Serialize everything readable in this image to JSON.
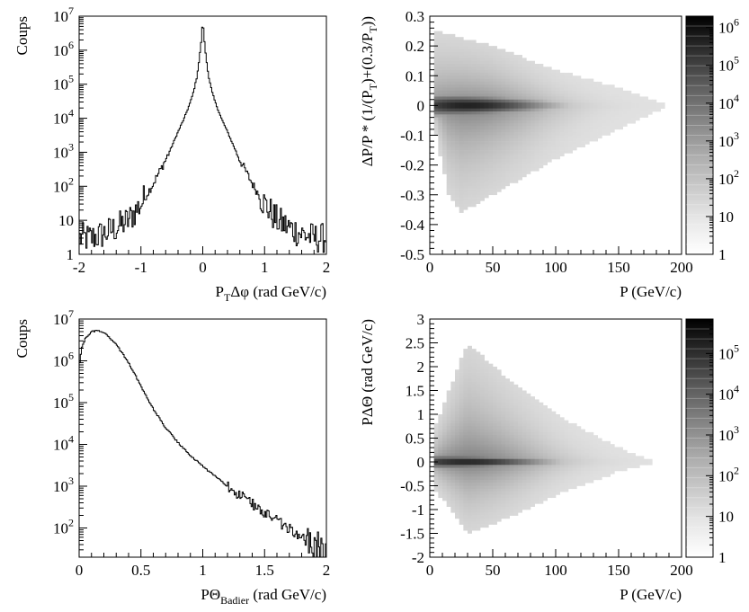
{
  "chart_data": [
    {
      "id": "panel-top-left",
      "type": "line",
      "style": "histogram-step",
      "xlabel": {
        "main": "P",
        "sub": "T",
        "rest": "Δφ (rad GeV/c)"
      },
      "ylabel": "Coups",
      "xlim": [
        -2,
        2
      ],
      "ylim": [
        1,
        10000000
      ],
      "yscale": "log",
      "xticks": [
        "-2",
        "-1",
        "0",
        "1",
        "2"
      ],
      "yticks": [
        {
          "value": 1,
          "base": "1",
          "exp": ""
        },
        {
          "value": 10,
          "base": "10",
          "exp": ""
        },
        {
          "value": 100,
          "base": "10",
          "exp": "2"
        },
        {
          "value": 1000,
          "base": "10",
          "exp": "3"
        },
        {
          "value": 10000,
          "base": "10",
          "exp": "4"
        },
        {
          "value": 100000,
          "base": "10",
          "exp": "5"
        },
        {
          "value": 1000000,
          "base": "10",
          "exp": "6"
        },
        {
          "value": 10000000,
          "base": "10",
          "exp": "7"
        }
      ],
      "series": [
        {
          "x": [
            -2.0,
            -1.8,
            -1.6,
            -1.4,
            -1.2,
            -1.0,
            -0.8,
            -0.6,
            -0.5,
            -0.4,
            -0.3,
            -0.2,
            -0.15,
            -0.1,
            -0.07,
            -0.05,
            -0.03,
            -0.02,
            -0.01,
            0.0,
            0.01,
            0.02,
            0.03,
            0.05,
            0.07,
            0.1,
            0.15,
            0.2,
            0.3,
            0.4,
            0.5,
            0.6,
            0.8,
            1.0,
            1.2,
            1.4,
            1.6,
            1.8,
            2.0
          ],
          "y": [
            3,
            3,
            4,
            6,
            10,
            30,
            120,
            600,
            1500,
            4000,
            10000,
            30000,
            60000,
            150000,
            350000,
            700000,
            1500000,
            2500000,
            4500000,
            6000000,
            4500000,
            2500000,
            1500000,
            700000,
            350000,
            150000,
            60000,
            30000,
            10000,
            4000,
            1500,
            600,
            120,
            30,
            10,
            6,
            4,
            3,
            3
          ]
        }
      ]
    },
    {
      "id": "panel-top-right",
      "type": "heatmap",
      "xlabel": "P (GeV/c)",
      "ylabel": "ΔP/P * (1/(P_T)+(0.3/P_T))",
      "ylabel_parts": {
        "a": "ΔP/P * (1/(P",
        "s1": "T",
        "b": ")+(0.3/P",
        "s2": "T",
        "c": "))"
      },
      "xlim": [
        0,
        200
      ],
      "ylim": [
        -0.5,
        0.3
      ],
      "xticks": [
        "0",
        "50",
        "100",
        "150",
        "200"
      ],
      "yticks": [
        "0.3",
        "0.2",
        "0.1",
        "0",
        "-0.1",
        "-0.2",
        "-0.3",
        "-0.4",
        "-0.5"
      ],
      "colorbar": {
        "scale": "log",
        "range": [
          1,
          2000000
        ],
        "ticks": [
          {
            "value": 1,
            "base": "1",
            "exp": ""
          },
          {
            "value": 10,
            "base": "10",
            "exp": ""
          },
          {
            "value": 100,
            "base": "10",
            "exp": "2"
          },
          {
            "value": 1000,
            "base": "10",
            "exp": "3"
          },
          {
            "value": 10000,
            "base": "10",
            "exp": "4"
          },
          {
            "value": 100000,
            "base": "10",
            "exp": "5"
          },
          {
            "value": 1000000,
            "base": "10",
            "exp": "6"
          }
        ]
      },
      "density": {
        "core": {
          "x_range": [
            5,
            185
          ],
          "center": 0.0,
          "half_width_start": 0.04,
          "peak_x": 40
        },
        "upper_envelope": [
          [
            5,
            0.25
          ],
          [
            50,
            0.2
          ],
          [
            100,
            0.12
          ],
          [
            150,
            0.06
          ],
          [
            185,
            0.01
          ]
        ],
        "lower_envelope": [
          [
            5,
            -0.1
          ],
          [
            15,
            -0.3
          ],
          [
            25,
            -0.36
          ],
          [
            50,
            -0.3
          ],
          [
            100,
            -0.18
          ],
          [
            150,
            -0.08
          ],
          [
            185,
            -0.01
          ]
        ]
      }
    },
    {
      "id": "panel-bottom-left",
      "type": "line",
      "style": "histogram-step",
      "xlabel": {
        "main": "PΘ",
        "sub": "Badier",
        "rest": " (rad GeV/c)"
      },
      "ylabel": "Coups",
      "xlim": [
        0,
        2
      ],
      "ylim": [
        20,
        10000000
      ],
      "yscale": "log",
      "xticks": [
        "0",
        "0.5",
        "1",
        "1.5",
        "2"
      ],
      "yticks": [
        {
          "value": 100,
          "base": "10",
          "exp": "2"
        },
        {
          "value": 1000,
          "base": "10",
          "exp": "3"
        },
        {
          "value": 10000,
          "base": "10",
          "exp": "4"
        },
        {
          "value": 100000,
          "base": "10",
          "exp": "5"
        },
        {
          "value": 1000000,
          "base": "10",
          "exp": "6"
        },
        {
          "value": 10000000,
          "base": "10",
          "exp": "7"
        }
      ],
      "series": [
        {
          "x": [
            0.0,
            0.02,
            0.05,
            0.1,
            0.15,
            0.2,
            0.3,
            0.4,
            0.5,
            0.6,
            0.7,
            0.8,
            0.9,
            1.0,
            1.2,
            1.4,
            1.6,
            1.8,
            1.9,
            2.0
          ],
          "y": [
            700000,
            2000000,
            3500000,
            5000000,
            5300000,
            4800000,
            2500000,
            900000,
            250000,
            70000,
            25000,
            11000,
            5500,
            3000,
            1000,
            380,
            150,
            60,
            35,
            22
          ]
        }
      ]
    },
    {
      "id": "panel-bottom-right",
      "type": "heatmap",
      "xlabel": "P (GeV/c)",
      "ylabel": "PΔΘ (rad GeV/c)",
      "xlim": [
        0,
        200
      ],
      "ylim": [
        -2,
        3
      ],
      "xticks": [
        "0",
        "50",
        "100",
        "150",
        "200"
      ],
      "yticks": [
        "3",
        "2.5",
        "2",
        "1.5",
        "1",
        "0.5",
        "0",
        "-0.5",
        "-1",
        "-1.5",
        "-2"
      ],
      "colorbar": {
        "scale": "log",
        "range": [
          1,
          700000
        ],
        "ticks": [
          {
            "value": 1,
            "base": "1",
            "exp": ""
          },
          {
            "value": 10,
            "base": "10",
            "exp": ""
          },
          {
            "value": 100,
            "base": "10",
            "exp": "2"
          },
          {
            "value": 1000,
            "base": "10",
            "exp": "3"
          },
          {
            "value": 10000,
            "base": "10",
            "exp": "4"
          },
          {
            "value": 100000,
            "base": "10",
            "exp": "5"
          }
        ]
      },
      "density": {
        "core": {
          "x_range": [
            5,
            175
          ],
          "center": 0.0,
          "half_width_start": 0.15,
          "peak_x": 40
        },
        "upper_envelope": [
          [
            5,
            0.8
          ],
          [
            30,
            2.5
          ],
          [
            60,
            1.8
          ],
          [
            100,
            1.0
          ],
          [
            150,
            0.3
          ],
          [
            175,
            0.05
          ]
        ],
        "lower_envelope": [
          [
            5,
            -0.6
          ],
          [
            30,
            -1.5
          ],
          [
            60,
            -1.2
          ],
          [
            100,
            -0.7
          ],
          [
            150,
            -0.2
          ],
          [
            175,
            -0.05
          ]
        ]
      }
    }
  ]
}
